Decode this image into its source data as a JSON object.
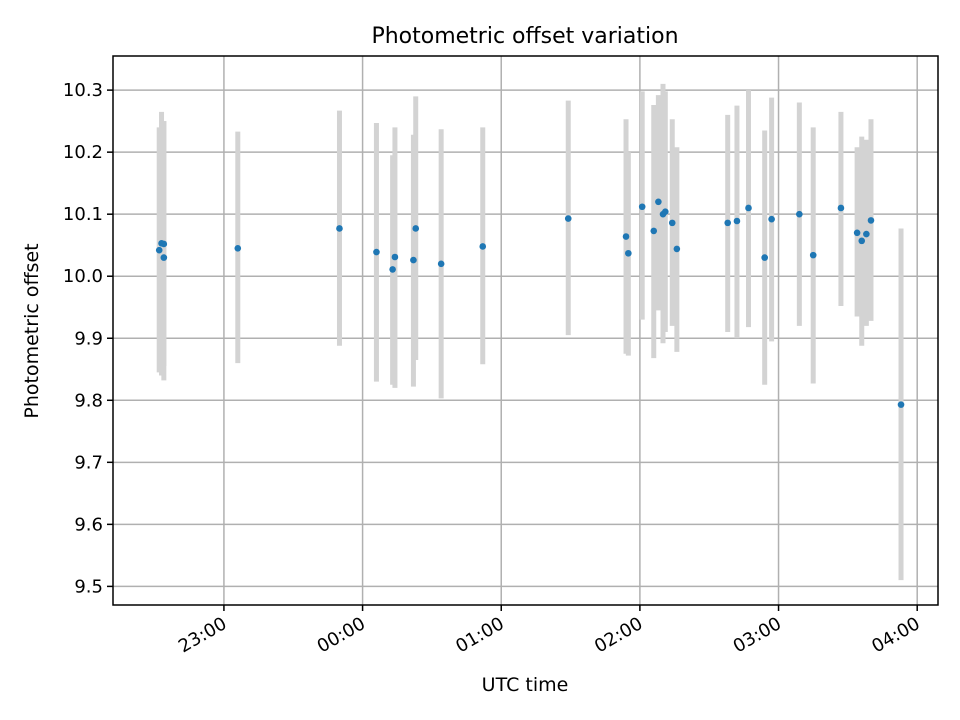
{
  "chart_data": {
    "type": "scatter",
    "title": "Photometric offset variation",
    "xlabel": "UTC time",
    "ylabel": "Photometric offset",
    "xaxis_format": "time HH:MM",
    "xlim": [
      "22:12",
      "04:09"
    ],
    "ylim": [
      9.47,
      10.355
    ],
    "grid": true,
    "x_ticks": [
      "23:00",
      "00:00",
      "01:00",
      "02:00",
      "03:00",
      "04:00"
    ],
    "y_ticks": [
      "9.5",
      "9.6",
      "9.7",
      "9.8",
      "9.9",
      "10.0",
      "10.1",
      "10.2",
      "10.3"
    ],
    "point_color": "#1f77b4",
    "errorbar_color": "#d3d3d3",
    "points": [
      {
        "x": "22:32",
        "y": 10.042,
        "ylo": 9.845,
        "yhi": 10.24
      },
      {
        "x": "22:33",
        "y": 10.053,
        "ylo": 9.84,
        "yhi": 10.265
      },
      {
        "x": "22:34",
        "y": 10.03,
        "ylo": 9.832,
        "yhi": 10.25
      },
      {
        "x": "22:34",
        "y": 10.052,
        "ylo": 9.855,
        "yhi": 10.25
      },
      {
        "x": "23:06",
        "y": 10.045,
        "ylo": 9.86,
        "yhi": 10.233
      },
      {
        "x": "23:50",
        "y": 10.077,
        "ylo": 9.888,
        "yhi": 10.267
      },
      {
        "x": "00:06",
        "y": 10.039,
        "ylo": 9.83,
        "yhi": 10.247
      },
      {
        "x": "00:13",
        "y": 10.011,
        "ylo": 9.825,
        "yhi": 10.195
      },
      {
        "x": "00:14",
        "y": 10.031,
        "ylo": 9.82,
        "yhi": 10.24
      },
      {
        "x": "00:22",
        "y": 10.026,
        "ylo": 9.822,
        "yhi": 10.228
      },
      {
        "x": "00:23",
        "y": 10.077,
        "ylo": 9.865,
        "yhi": 10.29
      },
      {
        "x": "00:34",
        "y": 10.02,
        "ylo": 9.803,
        "yhi": 10.237
      },
      {
        "x": "00:52",
        "y": 10.048,
        "ylo": 9.858,
        "yhi": 10.24
      },
      {
        "x": "01:29",
        "y": 10.093,
        "ylo": 9.905,
        "yhi": 10.283
      },
      {
        "x": "01:54",
        "y": 10.064,
        "ylo": 9.875,
        "yhi": 10.253
      },
      {
        "x": "01:55",
        "y": 10.037,
        "ylo": 9.872,
        "yhi": 10.2
      },
      {
        "x": "02:01",
        "y": 10.112,
        "ylo": 9.93,
        "yhi": 10.298
      },
      {
        "x": "02:06",
        "y": 10.073,
        "ylo": 9.868,
        "yhi": 10.276
      },
      {
        "x": "02:08",
        "y": 10.12,
        "ylo": 9.945,
        "yhi": 10.292
      },
      {
        "x": "02:10",
        "y": 10.1,
        "ylo": 9.892,
        "yhi": 10.31
      },
      {
        "x": "02:11",
        "y": 10.104,
        "ylo": 9.91,
        "yhi": 10.298
      },
      {
        "x": "02:14",
        "y": 10.086,
        "ylo": 9.92,
        "yhi": 10.253
      },
      {
        "x": "02:16",
        "y": 10.044,
        "ylo": 9.878,
        "yhi": 10.208
      },
      {
        "x": "02:38",
        "y": 10.086,
        "ylo": 9.91,
        "yhi": 10.26
      },
      {
        "x": "02:42",
        "y": 10.089,
        "ylo": 9.9,
        "yhi": 10.275
      },
      {
        "x": "02:47",
        "y": 10.11,
        "ylo": 9.918,
        "yhi": 10.3
      },
      {
        "x": "02:54",
        "y": 10.03,
        "ylo": 9.825,
        "yhi": 10.235
      },
      {
        "x": "02:57",
        "y": 10.092,
        "ylo": 9.895,
        "yhi": 10.288
      },
      {
        "x": "03:09",
        "y": 10.1,
        "ylo": 9.92,
        "yhi": 10.28
      },
      {
        "x": "03:15",
        "y": 10.034,
        "ylo": 9.827,
        "yhi": 10.24
      },
      {
        "x": "03:27",
        "y": 10.11,
        "ylo": 9.952,
        "yhi": 10.265
      },
      {
        "x": "03:34",
        "y": 10.07,
        "ylo": 9.935,
        "yhi": 10.208
      },
      {
        "x": "03:36",
        "y": 10.057,
        "ylo": 9.888,
        "yhi": 10.225
      },
      {
        "x": "03:38",
        "y": 10.068,
        "ylo": 9.92,
        "yhi": 10.22
      },
      {
        "x": "03:40",
        "y": 10.09,
        "ylo": 9.928,
        "yhi": 10.253
      },
      {
        "x": "03:53",
        "y": 9.793,
        "ylo": 9.51,
        "yhi": 10.077
      }
    ]
  }
}
